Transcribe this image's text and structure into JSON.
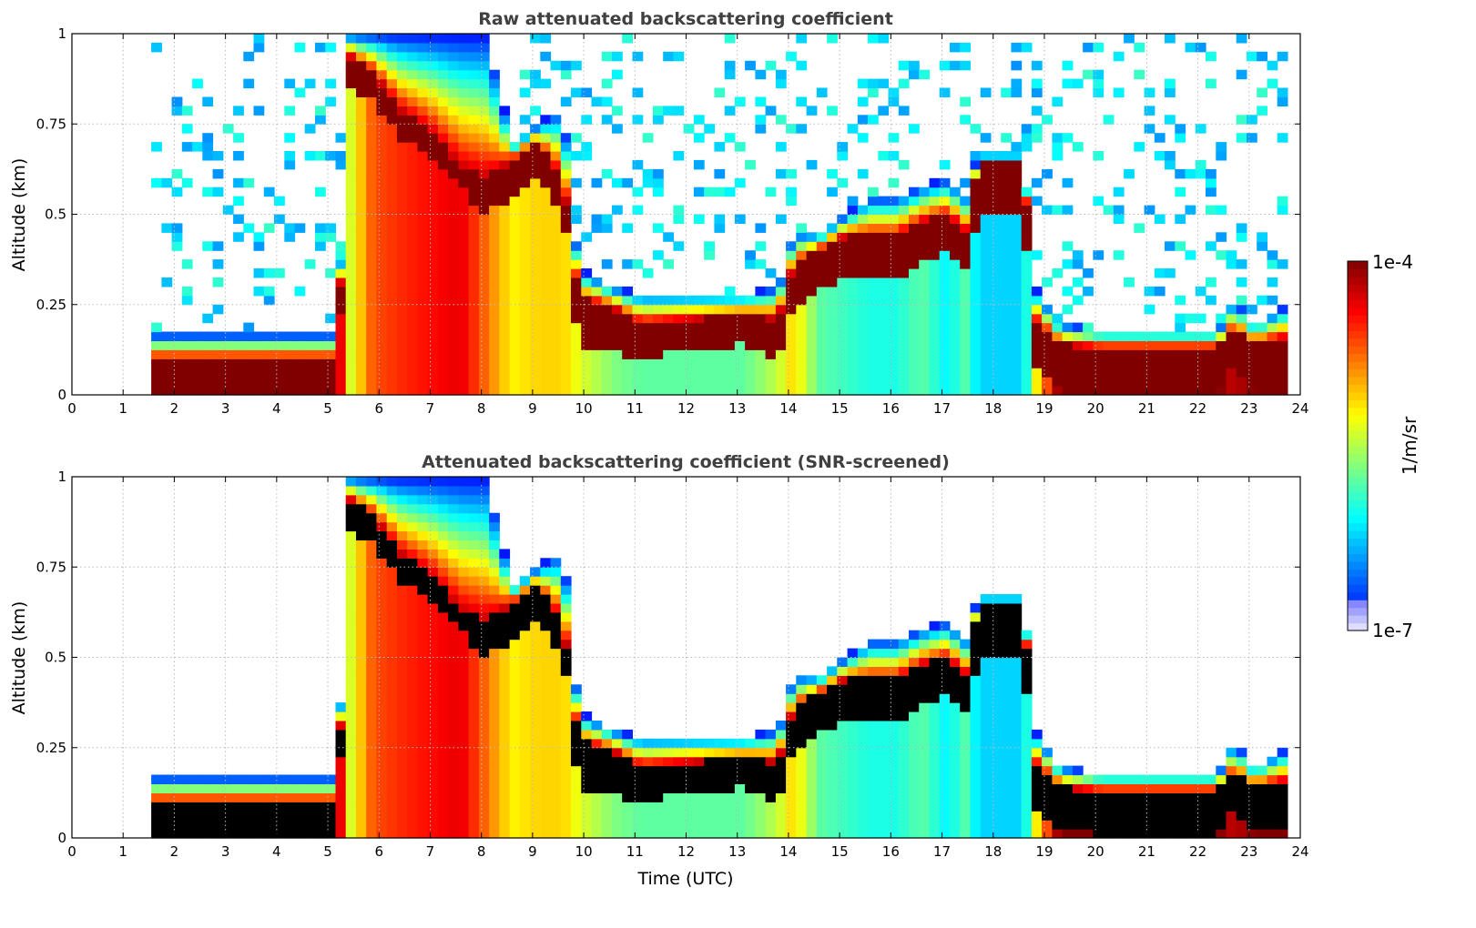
{
  "chart_data": [
    {
      "type": "heatmap",
      "title": "Raw attenuated backscattering coefficient",
      "xlabel": "",
      "ylabel": "Altitude (km)",
      "xlim": [
        0,
        24
      ],
      "ylim": [
        0,
        1
      ],
      "xticks": [
        "0",
        "1",
        "2",
        "3",
        "4",
        "5",
        "6",
        "7",
        "8",
        "9",
        "10",
        "11",
        "12",
        "13",
        "14",
        "15",
        "16",
        "17",
        "18",
        "19",
        "20",
        "21",
        "22",
        "23",
        "24"
      ],
      "yticks": [
        "0",
        "0.25",
        "0.5",
        "0.75",
        "1"
      ],
      "grid": true,
      "saturation_color": "#800000",
      "noise_above_layer": true
    },
    {
      "type": "heatmap",
      "title": "Attenuated backscattering coefficient (SNR-screened)",
      "xlabel": "Time (UTC)",
      "ylabel": "Altitude (km)",
      "xlim": [
        0,
        24
      ],
      "ylim": [
        0,
        1
      ],
      "xticks": [
        "0",
        "1",
        "2",
        "3",
        "4",
        "5",
        "6",
        "7",
        "8",
        "9",
        "10",
        "11",
        "12",
        "13",
        "14",
        "15",
        "16",
        "17",
        "18",
        "19",
        "20",
        "21",
        "22",
        "23",
        "24"
      ],
      "yticks": [
        "0",
        "0.25",
        "0.5",
        "0.75",
        "1"
      ],
      "grid": true,
      "saturation_color": "#000000",
      "noise_above_layer": false
    }
  ],
  "profile": {
    "time_h": [
      1.55,
      5.1,
      5.3,
      5.8,
      6.3,
      6.9,
      7.5,
      8.0,
      8.5,
      9.0,
      9.5,
      9.8,
      10.5,
      11.0,
      12.0,
      13.0,
      13.7,
      14.0,
      14.5,
      15.0,
      15.5,
      16.0,
      16.5,
      17.0,
      17.4,
      17.6,
      18.5,
      18.7,
      19.2,
      20.0,
      21.0,
      22.3,
      22.6,
      23.0,
      23.65
    ],
    "layer_top_km": [
      0.17,
      0.17,
      1.0,
      1.0,
      1.0,
      1.0,
      1.0,
      1.0,
      0.7,
      0.75,
      0.8,
      0.35,
      0.3,
      0.28,
      0.28,
      0.28,
      0.3,
      0.45,
      0.45,
      0.5,
      0.55,
      0.55,
      0.58,
      0.6,
      0.55,
      0.67,
      0.67,
      0.3,
      0.2,
      0.18,
      0.18,
      0.18,
      0.27,
      0.2,
      0.25
    ],
    "core_km": [
      0.05,
      0.05,
      0.9,
      0.85,
      0.75,
      0.7,
      0.6,
      0.55,
      0.6,
      0.65,
      0.55,
      0.2,
      0.18,
      0.15,
      0.17,
      0.18,
      0.15,
      0.3,
      0.35,
      0.38,
      0.38,
      0.38,
      0.42,
      0.45,
      0.4,
      0.57,
      0.57,
      0.15,
      0.08,
      0.07,
      0.07,
      0.07,
      0.13,
      0.08,
      0.1
    ],
    "core_halfwidth_km": [
      0.05,
      0.05,
      0.04,
      0.04,
      0.04,
      0.03,
      0.03,
      0.05,
      0.05,
      0.05,
      0.04,
      0.07,
      0.06,
      0.05,
      0.04,
      0.04,
      0.06,
      0.06,
      0.05,
      0.06,
      0.06,
      0.06,
      0.06,
      0.05,
      0.05,
      0.07,
      0.07,
      0.06,
      0.06,
      0.06,
      0.06,
      0.06,
      0.05,
      0.06,
      0.06
    ],
    "below_core_log10": [
      -4,
      -4,
      -5.3,
      -4.6,
      -4.5,
      -4.4,
      -4.3,
      -4.7,
      -5.1,
      -5.0,
      -5.0,
      -5.2,
      -5.5,
      -5.6,
      -5.6,
      -5.6,
      -5.3,
      -5.0,
      -5.6,
      -5.7,
      -5.8,
      -5.8,
      -5.6,
      -5.9,
      -5.6,
      -6.0,
      -6.0,
      -5.2,
      -4.0,
      -4.0,
      -4.0,
      -4.0,
      -4.2,
      -4.0,
      -4.0
    ]
  },
  "colorbar": {
    "label": "1/m/sr",
    "max_label": "1e-4",
    "min_label": "1e-7",
    "range_log10": [
      -7,
      -4
    ],
    "colormap": "jet"
  }
}
